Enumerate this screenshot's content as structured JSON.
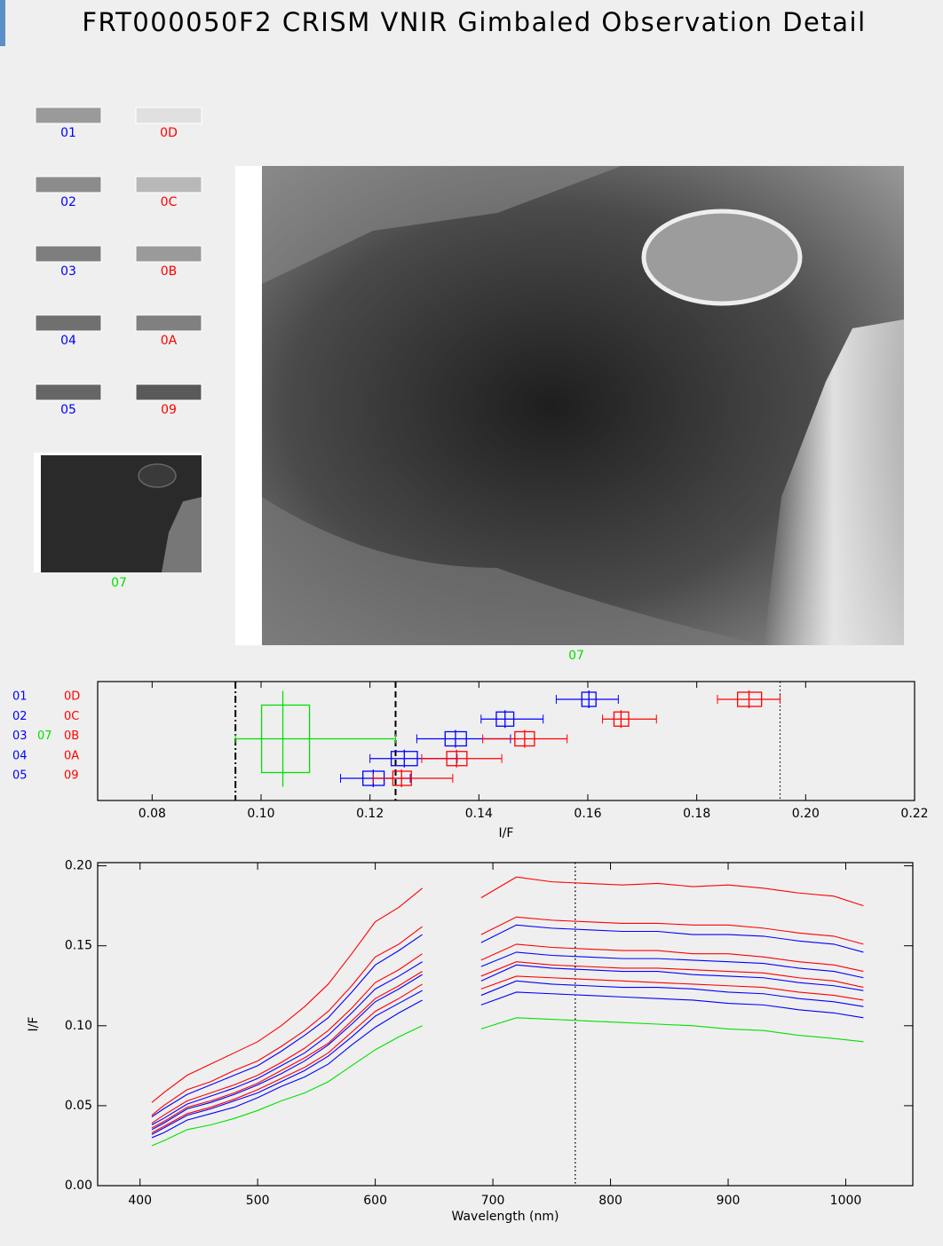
{
  "title": "FRT000050F2 CRISM VNIR Gimbaled Observation Detail",
  "thumbnail_columns": [
    [
      {
        "label": "01",
        "color": "#0000ff"
      },
      {
        "label": "02",
        "color": "#0000ff"
      },
      {
        "label": "03",
        "color": "#0000ff"
      },
      {
        "label": "04",
        "color": "#0000ff"
      },
      {
        "label": "05",
        "color": "#0000ff"
      }
    ],
    [
      {
        "label": "0D",
        "color": "#ff0000"
      },
      {
        "label": "0C",
        "color": "#ff0000"
      },
      {
        "label": "0B",
        "color": "#ff0000"
      },
      {
        "label": "0A",
        "color": "#ff0000"
      },
      {
        "label": "09",
        "color": "#ff0000"
      }
    ]
  ],
  "overview": {
    "label": "07",
    "color": "#00e000"
  },
  "main_image": {
    "label": "07",
    "color": "#00e000"
  },
  "chart_data": [
    {
      "type": "box",
      "xlabel": "I/F",
      "xlim": [
        0.07,
        0.22
      ],
      "xticks": [
        0.08,
        {
          "value": 0.1,
          "label": "0.10"
        },
        0.12,
        0.14,
        0.16,
        0.18,
        {
          "value": 0.2,
          "label": "0.20"
        },
        0.22
      ],
      "vlines": [
        {
          "value": 0.0953,
          "dash": "dashdot"
        },
        {
          "value": 0.1247,
          "dash": "dashed"
        },
        {
          "value": 0.1953,
          "dash": "dotted"
        }
      ],
      "series": [
        {
          "name": "01",
          "color": "#0000ff",
          "box": [
            0.1542,
            0.1589,
            0.1602,
            0.1615,
            0.1656
          ]
        },
        {
          "name": "02",
          "color": "#0000ff",
          "box": [
            0.1404,
            0.1432,
            0.1448,
            0.1464,
            0.1518
          ]
        },
        {
          "name": "03",
          "color": "#0000ff",
          "box": [
            0.1286,
            0.1338,
            0.1357,
            0.1377,
            0.1458
          ]
        },
        {
          "name": "04",
          "color": "#0000ff",
          "box": [
            0.12,
            0.1239,
            0.1263,
            0.1287,
            0.136
          ]
        },
        {
          "name": "05",
          "color": "#0000ff",
          "box": [
            0.1146,
            0.1187,
            0.1206,
            0.1226,
            0.1274
          ]
        },
        {
          "name": "0D",
          "color": "#ff0000",
          "box": [
            0.1838,
            0.1875,
            0.1896,
            0.1919,
            0.1953
          ]
        },
        {
          "name": "0C",
          "color": "#ff0000",
          "box": [
            0.1627,
            0.1648,
            0.1661,
            0.1675,
            0.1726
          ]
        },
        {
          "name": "0B",
          "color": "#ff0000",
          "box": [
            0.1407,
            0.1466,
            0.1484,
            0.1502,
            0.1562
          ]
        },
        {
          "name": "0A",
          "color": "#ff0000",
          "box": [
            0.1295,
            0.1341,
            0.1359,
            0.1378,
            0.1442
          ]
        },
        {
          "name": "09",
          "color": "#ff0000",
          "box": [
            0.1206,
            0.1242,
            0.1258,
            0.1276,
            0.1352
          ]
        },
        {
          "name": "07",
          "color": "#00e000",
          "box": [
            0.0953,
            0.1001,
            0.104,
            0.1089,
            0.1247
          ]
        }
      ]
    },
    {
      "type": "line",
      "xlabel": "Wavelength (nm)",
      "ylabel": "I/F",
      "x": [
        410,
        420,
        440,
        460,
        480,
        500,
        520,
        540,
        560,
        580,
        600,
        620,
        640,
        665,
        690,
        720,
        750,
        780,
        810,
        840,
        870,
        900,
        930,
        960,
        990,
        1015
      ],
      "xlim": [
        364,
        1057
      ],
      "xticks": [
        400,
        500,
        600,
        700,
        800,
        900,
        1000
      ],
      "ylim": [
        0,
        0.202
      ],
      "yticks": [
        {
          "value": 0,
          "label": "0.00"
        },
        {
          "value": 0.05,
          "label": "0.05"
        },
        {
          "value": 0.1,
          "label": "0.10"
        },
        {
          "value": 0.15,
          "label": "0.15"
        },
        {
          "value": 0.2,
          "label": "0.20"
        }
      ],
      "vlines": [
        {
          "value": 770,
          "dash": "dotted"
        }
      ],
      "series": [
        {
          "color": "#ff0000",
          "values": [
            0.052,
            0.058,
            0.069,
            0.076,
            0.083,
            0.09,
            0.1,
            0.112,
            0.126,
            0.145,
            0.165,
            0.174,
            0.186,
            null,
            0.18,
            0.193,
            0.19,
            0.189,
            0.188,
            0.189,
            0.187,
            0.188,
            0.186,
            0.183,
            0.181,
            0.175
          ]
        },
        {
          "color": "#ff0000",
          "values": [
            0.044,
            0.05,
            0.06,
            0.065,
            0.072,
            0.078,
            0.087,
            0.097,
            0.109,
            0.125,
            0.143,
            0.151,
            0.162,
            null,
            0.157,
            0.168,
            0.166,
            0.165,
            0.164,
            0.164,
            0.163,
            0.163,
            0.161,
            0.158,
            0.156,
            0.151
          ]
        },
        {
          "color": "#0000ff",
          "values": [
            0.043,
            0.048,
            0.057,
            0.063,
            0.069,
            0.075,
            0.084,
            0.094,
            0.105,
            0.121,
            0.138,
            0.147,
            0.157,
            null,
            0.152,
            0.163,
            0.161,
            0.16,
            0.159,
            0.159,
            0.157,
            0.157,
            0.156,
            0.153,
            0.151,
            0.146
          ]
        },
        {
          "color": "#ff0000",
          "values": [
            0.039,
            0.044,
            0.053,
            0.058,
            0.063,
            0.069,
            0.077,
            0.086,
            0.097,
            0.111,
            0.127,
            0.135,
            0.145,
            null,
            0.141,
            0.151,
            0.149,
            0.148,
            0.147,
            0.147,
            0.145,
            0.145,
            0.143,
            0.14,
            0.138,
            0.134
          ]
        },
        {
          "color": "#0000ff",
          "values": [
            0.038,
            0.042,
            0.051,
            0.056,
            0.061,
            0.067,
            0.075,
            0.083,
            0.094,
            0.108,
            0.123,
            0.131,
            0.14,
            null,
            0.137,
            0.146,
            0.144,
            0.143,
            0.142,
            0.142,
            0.141,
            0.14,
            0.139,
            0.136,
            0.134,
            0.13
          ]
        },
        {
          "color": "#ff0000",
          "values": [
            0.036,
            0.04,
            0.049,
            0.053,
            0.058,
            0.064,
            0.072,
            0.08,
            0.089,
            0.103,
            0.117,
            0.125,
            0.134,
            null,
            0.131,
            0.14,
            0.138,
            0.137,
            0.136,
            0.136,
            0.135,
            0.134,
            0.133,
            0.13,
            0.128,
            0.124
          ]
        },
        {
          "color": "#0000ff",
          "values": [
            0.035,
            0.039,
            0.048,
            0.052,
            0.057,
            0.063,
            0.07,
            0.078,
            0.088,
            0.101,
            0.115,
            0.123,
            0.132,
            null,
            0.128,
            0.138,
            0.136,
            0.135,
            0.134,
            0.134,
            0.132,
            0.131,
            0.13,
            0.127,
            0.125,
            0.122
          ]
        },
        {
          "color": "#ff0000",
          "values": [
            0.033,
            0.037,
            0.045,
            0.049,
            0.054,
            0.06,
            0.067,
            0.074,
            0.083,
            0.096,
            0.109,
            0.117,
            0.126,
            null,
            0.123,
            0.131,
            0.13,
            0.129,
            0.128,
            0.127,
            0.126,
            0.125,
            0.124,
            0.121,
            0.119,
            0.116
          ]
        },
        {
          "color": "#0000ff",
          "values": [
            0.032,
            0.036,
            0.044,
            0.048,
            0.053,
            0.058,
            0.065,
            0.072,
            0.081,
            0.093,
            0.106,
            0.114,
            0.122,
            null,
            0.119,
            0.128,
            0.126,
            0.125,
            0.124,
            0.124,
            0.123,
            0.121,
            0.12,
            0.117,
            0.115,
            0.112
          ]
        },
        {
          "color": "#0000ff",
          "values": [
            0.03,
            0.033,
            0.041,
            0.045,
            0.049,
            0.055,
            0.062,
            0.068,
            0.076,
            0.088,
            0.099,
            0.108,
            0.116,
            null,
            0.113,
            0.121,
            0.12,
            0.119,
            0.118,
            0.117,
            0.116,
            0.114,
            0.113,
            0.11,
            0.108,
            0.105
          ]
        },
        {
          "color": "#00e000",
          "values": [
            0.025,
            0.028,
            0.035,
            0.038,
            0.042,
            0.047,
            0.053,
            0.058,
            0.065,
            0.075,
            0.085,
            0.093,
            0.1,
            null,
            0.098,
            0.105,
            0.104,
            0.103,
            0.102,
            0.101,
            0.1,
            0.098,
            0.097,
            0.094,
            0.092,
            0.09
          ]
        }
      ]
    }
  ]
}
